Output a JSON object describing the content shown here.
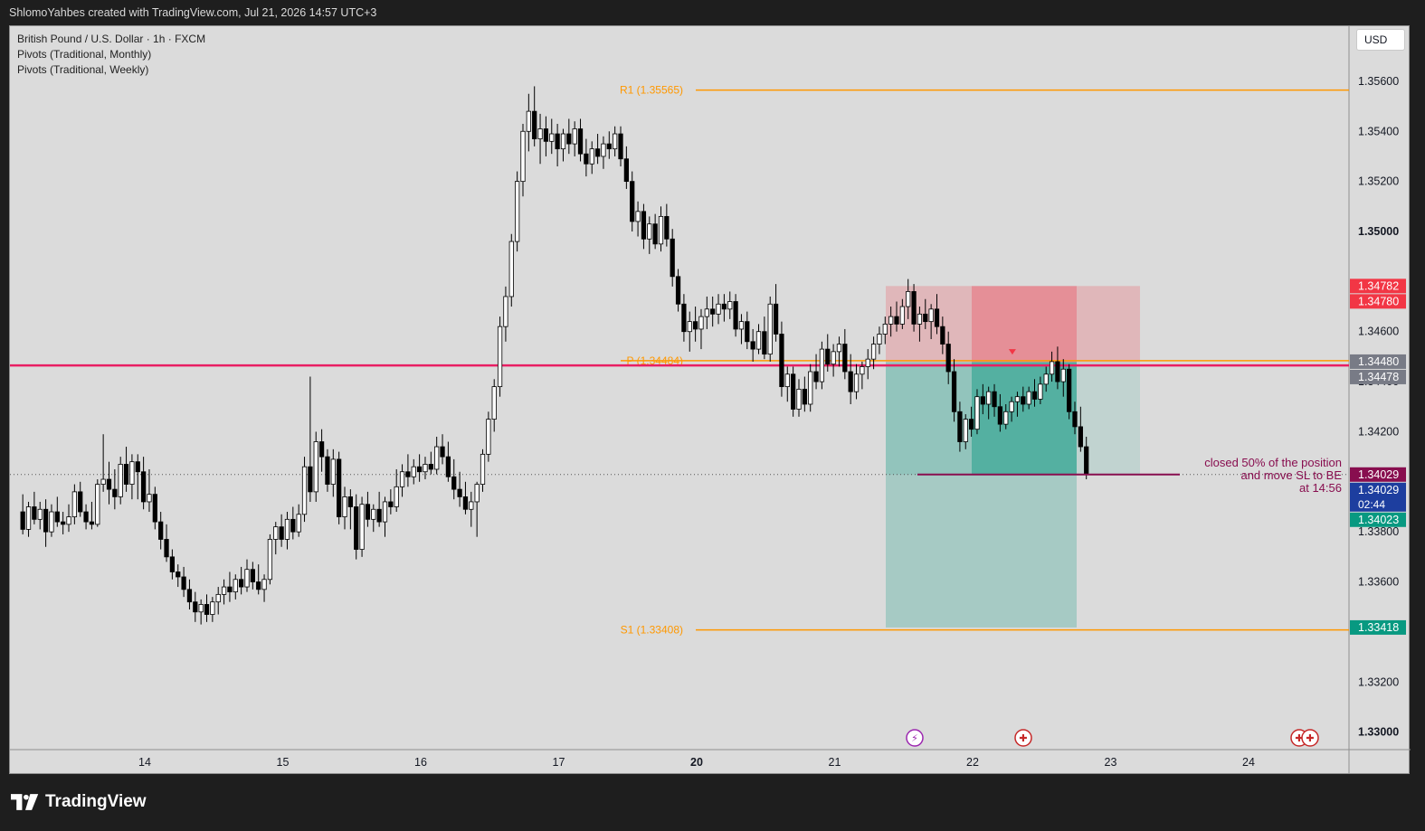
{
  "header": {
    "credit": "ShlomoYahbes created with TradingView.com, Jul 21, 2026 14:57 UTC+3"
  },
  "legend": {
    "symbol": "British Pound / U.S. Dollar · 1h · FXCM",
    "indicator_1": "Pivots (Traditional, Monthly)",
    "indicator_2": "Pivots (Traditional, Weekly)"
  },
  "currency_button": "USD",
  "price_axis": {
    "ticks": [
      "1.35600",
      "1.35400",
      "1.35200",
      "1.35000",
      "1.34600",
      "1.34400",
      "1.34200",
      "1.33800",
      "1.33600",
      "1.33200",
      "1.33000"
    ],
    "tick_values": [
      1.356,
      1.354,
      1.352,
      1.35,
      1.346,
      1.344,
      1.342,
      1.338,
      1.336,
      1.332,
      1.33
    ],
    "bold_ticks": [
      "1.35000",
      "1.33000"
    ]
  },
  "time_axis": {
    "labels": [
      "14",
      "15",
      "16",
      "17",
      "20",
      "21",
      "22",
      "23",
      "24"
    ],
    "bold_labels": [
      "20"
    ]
  },
  "price_labels": [
    {
      "text": "1.34782",
      "value": 1.34782,
      "color": "#f23645",
      "text_color": "#ffffff"
    },
    {
      "text": "1.34780",
      "value": 1.3478,
      "color": "#f23645",
      "text_color": "#ffffff"
    },
    {
      "text": "1.34480",
      "value": 1.3448,
      "color": "#787b86",
      "text_color": "#ffffff"
    },
    {
      "text": "1.34478",
      "value": 1.34478,
      "color": "#787b86",
      "text_color": "#ffffff"
    },
    {
      "text": "1.34029",
      "value": 1.34029,
      "color": "#880e4f",
      "text_color": "#ffffff"
    },
    {
      "text": "1.34029",
      "value": 1.34029,
      "color": "#1d3e9f",
      "text_color": "#ffffff",
      "sub": "02:44"
    },
    {
      "text": "1.34023",
      "value": 1.34023,
      "color": "#089981",
      "text_color": "#ffffff"
    },
    {
      "text": "1.33418",
      "value": 1.33418,
      "color": "#089981",
      "text_color": "#ffffff"
    }
  ],
  "pivots": {
    "r1_label": "R1 (1.35565)",
    "r1_value": 1.35565,
    "p_label": "P (1.34484)",
    "p_value": 1.34484,
    "s1_label": "S1 (1.33408)",
    "s1_value": 1.33408,
    "color": "#ff9800"
  },
  "horizontal_line": {
    "value": 1.34465,
    "color": "#e91e63"
  },
  "position": {
    "entry": 1.34478,
    "stop": 1.34782,
    "target": 1.33418,
    "stop_color": "#f23645",
    "target_color": "#089981"
  },
  "annotation": {
    "line1": "closed 50% of the position",
    "line2": "and move SL to BE",
    "line3": "at 14:56",
    "color": "#880e4f"
  },
  "chart_data": {
    "type": "candlestick",
    "symbol": "GBPUSD",
    "timeframe": "1h",
    "ylim": [
      1.3293,
      1.3582
    ],
    "x_labels": [
      "14",
      "15",
      "16",
      "17",
      "20",
      "21",
      "22",
      "23",
      "24"
    ],
    "last_price": 1.34029,
    "bars_per_day": 24,
    "candles": [
      [
        1.3388,
        1.3395,
        1.3379,
        1.3381
      ],
      [
        1.3381,
        1.3392,
        1.3378,
        1.339
      ],
      [
        1.339,
        1.3396,
        1.3383,
        1.3385
      ],
      [
        1.3385,
        1.3392,
        1.3381,
        1.3389
      ],
      [
        1.3389,
        1.3393,
        1.3374,
        1.338
      ],
      [
        1.338,
        1.3391,
        1.3378,
        1.3388
      ],
      [
        1.3388,
        1.3394,
        1.3382,
        1.3384
      ],
      [
        1.3384,
        1.3388,
        1.3379,
        1.3383
      ],
      [
        1.3383,
        1.3391,
        1.338,
        1.3386
      ],
      [
        1.3386,
        1.3399,
        1.3383,
        1.3396
      ],
      [
        1.3396,
        1.34,
        1.3386,
        1.3388
      ],
      [
        1.3388,
        1.3391,
        1.3381,
        1.3384
      ],
      [
        1.3384,
        1.3392,
        1.3381,
        1.3383
      ],
      [
        1.3383,
        1.3401,
        1.3382,
        1.3399
      ],
      [
        1.3399,
        1.3419,
        1.3396,
        1.3401
      ],
      [
        1.3401,
        1.3408,
        1.3391,
        1.3397
      ],
      [
        1.3397,
        1.3405,
        1.3389,
        1.3394
      ],
      [
        1.3394,
        1.341,
        1.3391,
        1.3407
      ],
      [
        1.3407,
        1.3414,
        1.3396,
        1.3399
      ],
      [
        1.3399,
        1.3411,
        1.3393,
        1.3408
      ],
      [
        1.3408,
        1.3411,
        1.3393,
        1.3404
      ],
      [
        1.3404,
        1.341,
        1.3389,
        1.3392
      ],
      [
        1.3392,
        1.3405,
        1.3388,
        1.3395
      ],
      [
        1.3395,
        1.3398,
        1.3381,
        1.3384
      ],
      [
        1.3384,
        1.3388,
        1.3373,
        1.3377
      ],
      [
        1.3377,
        1.3383,
        1.3368,
        1.337
      ],
      [
        1.337,
        1.3373,
        1.3361,
        1.3364
      ],
      [
        1.3364,
        1.3367,
        1.3358,
        1.3362
      ],
      [
        1.3362,
        1.3366,
        1.3354,
        1.3357
      ],
      [
        1.3357,
        1.3361,
        1.3349,
        1.3352
      ],
      [
        1.3352,
        1.3356,
        1.3344,
        1.3348
      ],
      [
        1.3348,
        1.3353,
        1.3343,
        1.3351
      ],
      [
        1.3351,
        1.3355,
        1.3344,
        1.3347
      ],
      [
        1.3347,
        1.3354,
        1.3344,
        1.3352
      ],
      [
        1.3352,
        1.3358,
        1.3347,
        1.3355
      ],
      [
        1.3355,
        1.3361,
        1.3351,
        1.3358
      ],
      [
        1.3358,
        1.3364,
        1.3352,
        1.3356
      ],
      [
        1.3356,
        1.3363,
        1.3353,
        1.3361
      ],
      [
        1.3361,
        1.3366,
        1.3355,
        1.3358
      ],
      [
        1.3358,
        1.3369,
        1.3356,
        1.3365
      ],
      [
        1.3365,
        1.3368,
        1.3357,
        1.336
      ],
      [
        1.336,
        1.3367,
        1.3355,
        1.3357
      ],
      [
        1.3357,
        1.3363,
        1.3352,
        1.3361
      ],
      [
        1.3361,
        1.3379,
        1.3359,
        1.3377
      ],
      [
        1.3377,
        1.3384,
        1.3371,
        1.3382
      ],
      [
        1.3382,
        1.3387,
        1.3374,
        1.3377
      ],
      [
        1.3377,
        1.3388,
        1.3373,
        1.3385
      ],
      [
        1.3385,
        1.339,
        1.3377,
        1.338
      ],
      [
        1.338,
        1.3391,
        1.3378,
        1.3387
      ],
      [
        1.3387,
        1.341,
        1.3384,
        1.3406
      ],
      [
        1.3406,
        1.3442,
        1.3392,
        1.3396
      ],
      [
        1.3396,
        1.342,
        1.3392,
        1.3416
      ],
      [
        1.3416,
        1.3421,
        1.3404,
        1.341
      ],
      [
        1.341,
        1.3413,
        1.3396,
        1.3399
      ],
      [
        1.3399,
        1.3413,
        1.3394,
        1.3409
      ],
      [
        1.3409,
        1.3412,
        1.3383,
        1.3386
      ],
      [
        1.3386,
        1.3398,
        1.3381,
        1.3394
      ],
      [
        1.3394,
        1.3397,
        1.3381,
        1.339
      ],
      [
        1.339,
        1.3395,
        1.3369,
        1.3373
      ],
      [
        1.3373,
        1.3394,
        1.337,
        1.3391
      ],
      [
        1.3391,
        1.3396,
        1.3382,
        1.3385
      ],
      [
        1.3385,
        1.3391,
        1.338,
        1.3389
      ],
      [
        1.3389,
        1.3396,
        1.3382,
        1.3384
      ],
      [
        1.3384,
        1.3394,
        1.3378,
        1.3392
      ],
      [
        1.3392,
        1.3397,
        1.3387,
        1.339
      ],
      [
        1.339,
        1.3405,
        1.3388,
        1.3398
      ],
      [
        1.3398,
        1.3407,
        1.3394,
        1.3404
      ],
      [
        1.3404,
        1.3411,
        1.3398,
        1.3402
      ],
      [
        1.3402,
        1.3409,
        1.3399,
        1.3406
      ],
      [
        1.3406,
        1.3411,
        1.34,
        1.3404
      ],
      [
        1.3404,
        1.341,
        1.3401,
        1.3407
      ],
      [
        1.3407,
        1.3412,
        1.3403,
        1.3405
      ],
      [
        1.3405,
        1.3418,
        1.3403,
        1.3414
      ],
      [
        1.3414,
        1.3419,
        1.3407,
        1.341
      ],
      [
        1.341,
        1.3416,
        1.34,
        1.3402
      ],
      [
        1.3402,
        1.3409,
        1.3393,
        1.3397
      ],
      [
        1.3397,
        1.3404,
        1.339,
        1.3394
      ],
      [
        1.3394,
        1.34,
        1.3387,
        1.3389
      ],
      [
        1.3389,
        1.3396,
        1.3382,
        1.3392
      ],
      [
        1.3392,
        1.34,
        1.3378,
        1.3399
      ],
      [
        1.3399,
        1.3413,
        1.3396,
        1.3411
      ],
      [
        1.3411,
        1.3428,
        1.3408,
        1.3425
      ],
      [
        1.3425,
        1.3441,
        1.342,
        1.3438
      ],
      [
        1.3438,
        1.3466,
        1.3434,
        1.3462
      ],
      [
        1.3462,
        1.3478,
        1.3456,
        1.3474
      ],
      [
        1.3474,
        1.3499,
        1.347,
        1.3496
      ],
      [
        1.3496,
        1.3524,
        1.3492,
        1.352
      ],
      [
        1.352,
        1.3543,
        1.3514,
        1.354
      ],
      [
        1.354,
        1.3555,
        1.3532,
        1.3548
      ],
      [
        1.3548,
        1.3558,
        1.3534,
        1.3537
      ],
      [
        1.3537,
        1.3547,
        1.3527,
        1.3541
      ],
      [
        1.3541,
        1.3546,
        1.353,
        1.3536
      ],
      [
        1.3536,
        1.3545,
        1.3531,
        1.3539
      ],
      [
        1.3539,
        1.3543,
        1.3526,
        1.3533
      ],
      [
        1.3533,
        1.3541,
        1.3528,
        1.3539
      ],
      [
        1.3539,
        1.3545,
        1.3531,
        1.3535
      ],
      [
        1.3535,
        1.3544,
        1.353,
        1.3541
      ],
      [
        1.3541,
        1.3545,
        1.3528,
        1.3531
      ],
      [
        1.3531,
        1.3537,
        1.3522,
        1.3527
      ],
      [
        1.3527,
        1.3536,
        1.3523,
        1.3533
      ],
      [
        1.3533,
        1.3539,
        1.3527,
        1.353
      ],
      [
        1.353,
        1.3538,
        1.3525,
        1.3535
      ],
      [
        1.3535,
        1.354,
        1.3529,
        1.3533
      ],
      [
        1.3533,
        1.3542,
        1.353,
        1.3539
      ],
      [
        1.3539,
        1.3542,
        1.3526,
        1.3529
      ],
      [
        1.3529,
        1.3534,
        1.3517,
        1.352
      ],
      [
        1.352,
        1.3524,
        1.35,
        1.3504
      ],
      [
        1.3504,
        1.3512,
        1.3498,
        1.3508
      ],
      [
        1.3508,
        1.3511,
        1.3493,
        1.3497
      ],
      [
        1.3497,
        1.3506,
        1.3491,
        1.3503
      ],
      [
        1.3503,
        1.3507,
        1.3493,
        1.3495
      ],
      [
        1.3495,
        1.351,
        1.3492,
        1.3506
      ],
      [
        1.3506,
        1.3511,
        1.3494,
        1.3497
      ],
      [
        1.3497,
        1.3501,
        1.3478,
        1.3482
      ],
      [
        1.3482,
        1.3485,
        1.3468,
        1.3471
      ],
      [
        1.3471,
        1.3475,
        1.3456,
        1.346
      ],
      [
        1.346,
        1.3468,
        1.3452,
        1.3464
      ],
      [
        1.3464,
        1.347,
        1.3456,
        1.3461
      ],
      [
        1.3461,
        1.3469,
        1.3453,
        1.3466
      ],
      [
        1.3466,
        1.3474,
        1.3461,
        1.3469
      ],
      [
        1.3469,
        1.3474,
        1.3462,
        1.3467
      ],
      [
        1.3467,
        1.3475,
        1.3463,
        1.3471
      ],
      [
        1.3471,
        1.3475,
        1.3464,
        1.3469
      ],
      [
        1.3469,
        1.3476,
        1.3465,
        1.3472
      ],
      [
        1.3472,
        1.3475,
        1.3458,
        1.3461
      ],
      [
        1.3461,
        1.3467,
        1.3455,
        1.3464
      ],
      [
        1.3464,
        1.3468,
        1.3453,
        1.3456
      ],
      [
        1.3456,
        1.3461,
        1.3448,
        1.3453
      ],
      [
        1.3453,
        1.3463,
        1.3451,
        1.346
      ],
      [
        1.346,
        1.3466,
        1.3449,
        1.3451
      ],
      [
        1.3451,
        1.3474,
        1.3448,
        1.3471
      ],
      [
        1.3471,
        1.3479,
        1.3456,
        1.3459
      ],
      [
        1.3459,
        1.3464,
        1.3434,
        1.3438
      ],
      [
        1.3438,
        1.3446,
        1.3432,
        1.3443
      ],
      [
        1.3443,
        1.3446,
        1.3426,
        1.3429
      ],
      [
        1.3429,
        1.3441,
        1.3426,
        1.3437
      ],
      [
        1.3437,
        1.3442,
        1.3428,
        1.3431
      ],
      [
        1.3431,
        1.3447,
        1.3428,
        1.3444
      ],
      [
        1.3444,
        1.3451,
        1.3437,
        1.344
      ],
      [
        1.344,
        1.3456,
        1.3437,
        1.3453
      ],
      [
        1.3453,
        1.3459,
        1.3444,
        1.3447
      ],
      [
        1.3447,
        1.3455,
        1.3442,
        1.3452
      ],
      [
        1.3452,
        1.3458,
        1.3446,
        1.3455
      ],
      [
        1.3455,
        1.3461,
        1.3441,
        1.3444
      ],
      [
        1.3444,
        1.3451,
        1.3431,
        1.3436
      ],
      [
        1.3436,
        1.3447,
        1.3433,
        1.3443
      ],
      [
        1.3443,
        1.3448,
        1.3437,
        1.3446
      ],
      [
        1.3446,
        1.3453,
        1.3441,
        1.3449
      ],
      [
        1.3449,
        1.3458,
        1.3445,
        1.3455
      ],
      [
        1.3455,
        1.3462,
        1.3451,
        1.3459
      ],
      [
        1.3459,
        1.3466,
        1.3455,
        1.3463
      ],
      [
        1.3463,
        1.347,
        1.3458,
        1.3466
      ],
      [
        1.3466,
        1.3472,
        1.346,
        1.3463
      ],
      [
        1.3463,
        1.3473,
        1.3461,
        1.347
      ],
      [
        1.347,
        1.3481,
        1.3465,
        1.3476
      ],
      [
        1.3476,
        1.3479,
        1.346,
        1.3463
      ],
      [
        1.3463,
        1.347,
        1.3456,
        1.3467
      ],
      [
        1.3467,
        1.3473,
        1.3461,
        1.3464
      ],
      [
        1.3464,
        1.3471,
        1.3457,
        1.3469
      ],
      [
        1.3469,
        1.3475,
        1.3459,
        1.3462
      ],
      [
        1.3462,
        1.3466,
        1.3451,
        1.3455
      ],
      [
        1.3455,
        1.346,
        1.3439,
        1.3444
      ],
      [
        1.3444,
        1.3449,
        1.3424,
        1.3428
      ],
      [
        1.3428,
        1.3432,
        1.3412,
        1.3416
      ],
      [
        1.3416,
        1.3427,
        1.3413,
        1.3425
      ],
      [
        1.3425,
        1.343,
        1.3418,
        1.3421
      ],
      [
        1.3421,
        1.3437,
        1.3419,
        1.3434
      ],
      [
        1.3434,
        1.3439,
        1.3427,
        1.3431
      ],
      [
        1.3431,
        1.3438,
        1.3425,
        1.3436
      ],
      [
        1.3436,
        1.3439,
        1.3426,
        1.343
      ],
      [
        1.343,
        1.3435,
        1.342,
        1.3423
      ],
      [
        1.3423,
        1.3431,
        1.3421,
        1.3428
      ],
      [
        1.3428,
        1.3434,
        1.3424,
        1.3432
      ],
      [
        1.3432,
        1.3436,
        1.3426,
        1.3434
      ],
      [
        1.3434,
        1.3438,
        1.3428,
        1.3431
      ],
      [
        1.3431,
        1.3438,
        1.3429,
        1.3436
      ],
      [
        1.3436,
        1.3441,
        1.343,
        1.3433
      ],
      [
        1.3433,
        1.3442,
        1.3431,
        1.3439
      ],
      [
        1.3439,
        1.3446,
        1.3436,
        1.3443
      ],
      [
        1.3443,
        1.3452,
        1.344,
        1.3448
      ],
      [
        1.3448,
        1.3454,
        1.3437,
        1.344
      ],
      [
        1.344,
        1.3449,
        1.3434,
        1.3445
      ],
      [
        1.3445,
        1.3447,
        1.3425,
        1.3428
      ],
      [
        1.3428,
        1.3432,
        1.3419,
        1.3422
      ],
      [
        1.3422,
        1.343,
        1.3412,
        1.3414
      ],
      [
        1.3414,
        1.3418,
        1.3401,
        1.3403
      ]
    ]
  }
}
